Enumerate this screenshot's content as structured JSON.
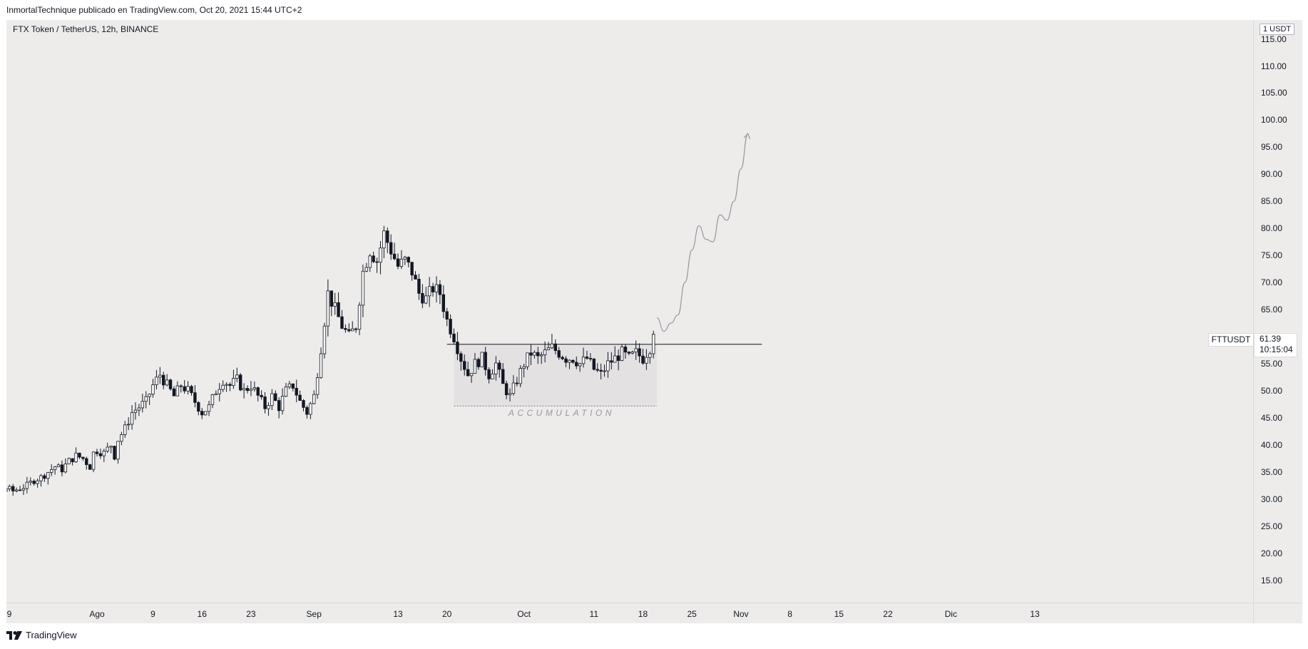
{
  "header": {
    "text": "InmortalTechnique publicado en TradingView.com, Oct 20, 2021 15:44 UTC+2"
  },
  "symbol": {
    "label": "FTX Token / TetherUS, 12h, BINANCE",
    "ticker": "FTTUSDT",
    "last_price": "61.39",
    "countdown": "10:15:04"
  },
  "footer": {
    "brand": "TradingView",
    "logo_icon": "tradingview-logo-icon"
  },
  "chart_data": {
    "type": "candlestick",
    "unit_label": "1 USDT",
    "ylim": [
      10.87,
      118.5
    ],
    "y_ticks": [
      "115.00",
      "110.00",
      "105.00",
      "100.00",
      "95.00",
      "90.00",
      "85.00",
      "80.00",
      "75.00",
      "70.00",
      "65.00",
      "60.00",
      "55.00",
      "50.00",
      "45.00",
      "40.00",
      "35.00",
      "30.00",
      "25.00",
      "20.00",
      "15.00"
    ],
    "x_ticks": [
      {
        "label": "9",
        "day": -22
      },
      {
        "label": "Ago",
        "day": 0
      },
      {
        "label": "9",
        "day": 8
      },
      {
        "label": "16",
        "day": 15
      },
      {
        "label": "23",
        "day": 22
      },
      {
        "label": "Sep",
        "day": 31
      },
      {
        "label": "13",
        "day": 43
      },
      {
        "label": "20",
        "day": 50
      },
      {
        "label": "Oct",
        "day": 61
      },
      {
        "label": "11",
        "day": 71
      },
      {
        "label": "18",
        "day": 78
      },
      {
        "label": "25",
        "day": 85
      },
      {
        "label": "Nov",
        "day": 92
      },
      {
        "label": "8",
        "day": 99
      },
      {
        "label": "15",
        "day": 106
      },
      {
        "label": "22",
        "day": 113
      },
      {
        "label": "Dic",
        "day": 122
      },
      {
        "label": "13",
        "day": 134
      }
    ],
    "price_path": [
      [
        -22.5,
        25.5
      ],
      [
        -21.5,
        24.5
      ],
      [
        -20,
        27.5
      ],
      [
        -19,
        28.5
      ],
      [
        -18,
        29
      ],
      [
        -17,
        29.5
      ],
      [
        -16,
        30
      ],
      [
        -15,
        30.5
      ],
      [
        -14,
        31
      ],
      [
        -13,
        32
      ],
      [
        -12,
        31.5
      ],
      [
        -11,
        32
      ],
      [
        -10,
        32.5
      ],
      [
        -9,
        33.5
      ],
      [
        -8,
        34
      ],
      [
        -7,
        35
      ],
      [
        -6,
        36
      ],
      [
        -5,
        35.5
      ],
      [
        -4,
        37
      ],
      [
        -3,
        38
      ],
      [
        -2,
        37.5
      ],
      [
        -1,
        36
      ],
      [
        -0.5,
        38.5
      ],
      [
        0,
        39
      ],
      [
        1,
        38.5
      ],
      [
        2,
        40
      ],
      [
        2.5,
        38
      ],
      [
        3,
        41
      ],
      [
        4,
        43
      ],
      [
        5,
        46
      ],
      [
        6,
        47
      ],
      [
        7,
        48
      ],
      [
        8,
        51
      ],
      [
        9,
        53
      ],
      [
        10,
        51
      ],
      [
        11,
        49
      ],
      [
        12,
        51
      ],
      [
        13,
        50
      ],
      [
        14,
        48
      ],
      [
        15,
        46
      ],
      [
        16,
        47
      ],
      [
        17,
        50
      ],
      [
        18,
        52
      ],
      [
        19,
        51
      ],
      [
        20,
        52
      ],
      [
        21,
        50
      ],
      [
        22,
        51
      ],
      [
        23,
        49
      ],
      [
        24,
        47
      ],
      [
        25,
        49
      ],
      [
        26,
        47
      ],
      [
        27,
        50
      ],
      [
        28,
        51
      ],
      [
        29,
        48
      ],
      [
        30,
        46
      ],
      [
        31,
        49
      ],
      [
        32,
        58
      ],
      [
        33,
        68
      ],
      [
        34,
        65
      ],
      [
        35,
        62
      ],
      [
        36,
        60
      ],
      [
        37,
        62
      ],
      [
        38,
        72
      ],
      [
        39,
        76
      ],
      [
        40,
        74
      ],
      [
        41,
        79
      ],
      [
        42,
        76
      ],
      [
        43,
        73
      ],
      [
        44,
        74
      ],
      [
        45,
        72
      ],
      [
        46,
        68
      ],
      [
        47,
        67
      ],
      [
        48,
        69
      ],
      [
        49,
        68
      ],
      [
        50,
        63
      ],
      [
        51,
        60
      ],
      [
        52,
        56
      ],
      [
        53,
        53
      ],
      [
        54,
        55
      ],
      [
        55,
        56
      ],
      [
        56,
        53
      ],
      [
        57,
        55
      ],
      [
        58,
        51
      ],
      [
        59,
        49
      ],
      [
        60,
        52
      ],
      [
        61,
        55
      ],
      [
        62,
        57
      ],
      [
        63,
        56
      ],
      [
        64,
        57
      ],
      [
        65,
        58
      ],
      [
        66,
        57
      ],
      [
        67,
        56
      ],
      [
        68,
        56
      ],
      [
        69,
        55
      ],
      [
        70,
        56
      ],
      [
        71,
        54
      ],
      [
        72,
        53
      ],
      [
        73,
        55
      ],
      [
        74,
        56
      ],
      [
        75,
        57
      ],
      [
        76,
        56
      ],
      [
        77,
        57
      ],
      [
        78,
        56
      ],
      [
        79,
        58
      ],
      [
        79.5,
        61.4
      ]
    ],
    "candle_days": [
      -22.5,
      79.5
    ],
    "shapes": {
      "horizontal_line": {
        "price": 58.6,
        "from_day": 50,
        "to_day": 95
      },
      "box": {
        "top": 58.6,
        "bottom": 47.2,
        "from_day": 51,
        "to_day": 80
      },
      "box_label": "ACCUMULATION",
      "projection": [
        [
          80,
          63.5
        ],
        [
          81,
          61
        ],
        [
          82,
          62.5
        ],
        [
          83,
          64
        ],
        [
          84,
          70
        ],
        [
          85,
          76
        ],
        [
          86,
          80.5
        ],
        [
          87,
          78
        ],
        [
          88,
          77.5
        ],
        [
          89,
          82.5
        ],
        [
          90,
          81.5
        ],
        [
          91,
          85
        ],
        [
          92,
          91
        ],
        [
          93,
          97.5
        ]
      ]
    }
  }
}
